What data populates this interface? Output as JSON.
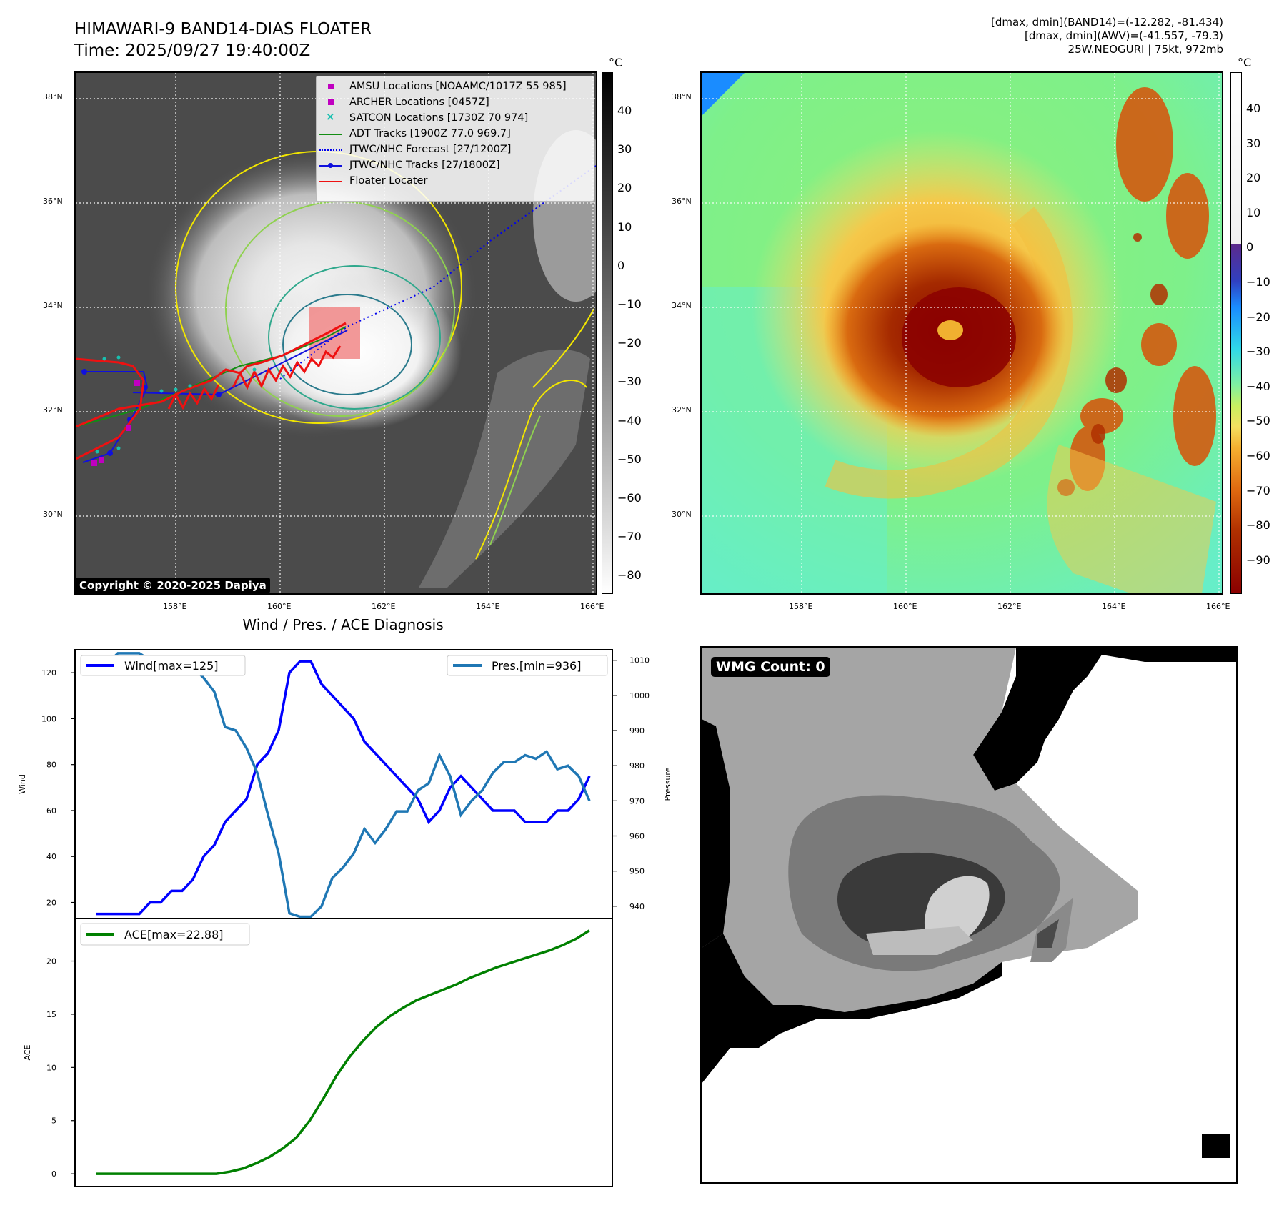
{
  "header": {
    "title_line1": "HIMAWARI-9 BAND14-DIAS FLOATER",
    "title_line2": "Time: 2025/09/27 19:40:00Z",
    "info_line1": "[dmax, dmin](BAND14)=(-12.282, -81.434)",
    "info_line2": "[dmax, dmin](AWV)=(-41.557, -79.3)",
    "info_line3": "25W.NEOGURI | 75kt, 972mb"
  },
  "map_axes": {
    "lat_labels": [
      "38°N",
      "36°N",
      "34°N",
      "32°N",
      "30°N"
    ],
    "lon_labels": [
      "158°E",
      "160°E",
      "162°E",
      "164°E",
      "166°E"
    ]
  },
  "ir_panel": {
    "copyright": "Copyright © 2020-2025 Dapiya",
    "colorbar_unit": "°C",
    "colorbar_ticks": [
      "40",
      "30",
      "20",
      "10",
      "0",
      "−10",
      "−20",
      "−30",
      "−40",
      "−50",
      "−60",
      "−70",
      "−80"
    ],
    "legend": [
      {
        "label": "AMSU Locations [NOAAMC/1017Z 55 985]",
        "color": "#c000c0",
        "marker": "square"
      },
      {
        "label": "ARCHER Locations [0457Z]",
        "color": "#c000c0",
        "marker": "square"
      },
      {
        "label": "SATCON Locations [1730Z 70 974]",
        "color": "#18c0b0",
        "marker": "x"
      },
      {
        "label": "ADT Tracks [1900Z 77.0 969.7]",
        "color": "#138d13",
        "marker": "line"
      },
      {
        "label": "JTWC/NHC Forecast [27/1200Z]",
        "color": "#0000ee",
        "marker": "dotted"
      },
      {
        "label": "JTWC/NHC Tracks [27/1800Z]",
        "color": "#1010dd",
        "marker": "line-dot"
      },
      {
        "label": "Floater Locater",
        "color": "#ee1111",
        "marker": "line"
      }
    ]
  },
  "awv_panel": {
    "colorbar_unit": "°C",
    "colorbar_ticks": [
      "40",
      "30",
      "20",
      "10",
      "0",
      "−10",
      "−20",
      "−30",
      "−40",
      "−50",
      "−60",
      "−70",
      "−80",
      "−90"
    ]
  },
  "wmg_panel": {
    "label": "WMG Count: 0"
  },
  "chart_data": [
    {
      "type": "line",
      "title": "Wind / Pres. / ACE Diagnosis",
      "xlabel": "",
      "ylabel": "Wind",
      "y2label": "Pressure",
      "ylim": [
        13,
        130
      ],
      "y2lim": [
        936.5,
        1013
      ],
      "yticks": [
        "20",
        "40",
        "60",
        "80",
        "100",
        "120"
      ],
      "y2ticks": [
        "940",
        "950",
        "960",
        "970",
        "980",
        "990",
        "1000",
        "1010"
      ],
      "series": [
        {
          "name": "Wind",
          "legend": "Wind[max=125]",
          "color": "#0000ff",
          "axis": "left",
          "values": [
            15,
            15,
            15,
            15,
            15,
            20,
            20,
            25,
            25,
            30,
            40,
            45,
            55,
            60,
            65,
            80,
            85,
            95,
            120,
            125,
            125,
            115,
            110,
            105,
            100,
            90,
            85,
            80,
            75,
            70,
            65,
            55,
            60,
            70,
            75,
            70,
            65,
            60,
            60,
            60,
            55,
            55,
            55,
            60,
            60,
            65,
            75
          ]
        },
        {
          "name": "Pressure",
          "legend": "Pres.[min=936]",
          "color": "#1f77b4",
          "axis": "right",
          "values": [
            1009,
            1009,
            1012,
            1012,
            1012,
            1010,
            1009,
            1009,
            1009,
            1008,
            1005,
            1001,
            991,
            990,
            985,
            978,
            966,
            955,
            938,
            937,
            937,
            940,
            948,
            951,
            955,
            962,
            958,
            962,
            967,
            967,
            973,
            975,
            983,
            977,
            966,
            970,
            973,
            978,
            981,
            981,
            983,
            982,
            984,
            979,
            980,
            977,
            970
          ]
        }
      ]
    },
    {
      "type": "line",
      "title": "",
      "xlabel": "",
      "ylabel": "ACE",
      "ylim": [
        -1.2,
        24
      ],
      "yticks": [
        "0",
        "5",
        "10",
        "15",
        "20"
      ],
      "series": [
        {
          "name": "ACE",
          "legend": "ACE[max=22.88]",
          "color": "#008000",
          "values": [
            0,
            0,
            0,
            0,
            0,
            0,
            0,
            0,
            0,
            0,
            0.2,
            0.5,
            1.0,
            1.6,
            2.4,
            3.4,
            5.0,
            7.0,
            9.2,
            11.0,
            12.5,
            13.8,
            14.8,
            15.6,
            16.3,
            16.8,
            17.3,
            17.8,
            18.4,
            18.9,
            19.4,
            19.8,
            20.2,
            20.6,
            21.0,
            21.5,
            22.1,
            22.88
          ]
        }
      ]
    }
  ]
}
